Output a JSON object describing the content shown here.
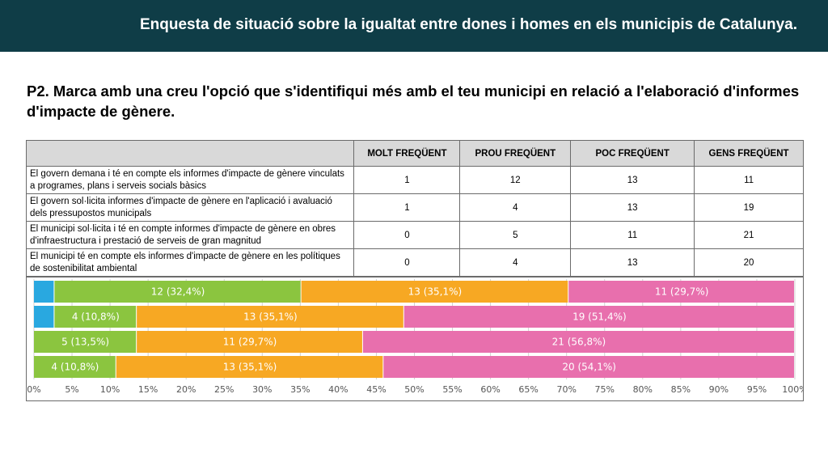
{
  "header": {
    "title": "Enquesta de situació sobre la  igualtat entre dones i homes en els municipis de Catalunya."
  },
  "question": "P2. Marca amb una creu l'opció que s'identifiqui més amb el teu municipi en relació a l'elaboració d'informes d'impacte de gènere.",
  "table": {
    "columns": [
      "MOLT FREQÜENT",
      "PROU FREQÜENT",
      "POC FREQÜENT",
      "GENS FREQÜENT"
    ],
    "rows": [
      {
        "label": "El govern demana i té en compte els informes d'impacte de gènere vinculats a programes, plans i serveis socials bàsics",
        "values": [
          "1",
          "12",
          "13",
          "11"
        ]
      },
      {
        "label": "El govern sol·licita informes d'impacte de gènere en l'aplicació i avaluació dels pressupostos municipals",
        "values": [
          "1",
          "4",
          "13",
          "19"
        ]
      },
      {
        "label": "El municipi sol·licita i té en compte informes d'impacte de gènere en obres d'infraestructura i prestació de serveis de gran magnitud",
        "values": [
          "0",
          "5",
          "11",
          "21"
        ]
      },
      {
        "label": "El municipi té en compte els informes d'impacte de gènere en les polítiques de sostenibilitat ambiental",
        "values": [
          "0",
          "4",
          "13",
          "20"
        ]
      }
    ]
  },
  "chart_data": {
    "type": "bar",
    "orientation": "horizontal",
    "stacked": true,
    "normalized": true,
    "colors": [
      "#29a8e0",
      "#8bc53f",
      "#f7a823",
      "#e86fad"
    ],
    "categories": [
      "Row 1",
      "Row 2",
      "Row 3",
      "Row 4"
    ],
    "series": [
      {
        "values": [
          1,
          1,
          0,
          0
        ],
        "labels": [
          "",
          "",
          "",
          ""
        ]
      },
      {
        "values": [
          12,
          4,
          5,
          4
        ],
        "labels": [
          "12 (32,4%)",
          "4 (10,8%)",
          "5 (13,5%)",
          "4 (10,8%)"
        ]
      },
      {
        "values": [
          13,
          13,
          11,
          13
        ],
        "labels": [
          "13 (35,1%)",
          "13 (35,1%)",
          "11 (29,7%)",
          "13 (35,1%)"
        ]
      },
      {
        "values": [
          11,
          19,
          21,
          20
        ],
        "labels": [
          "11 (29,7%)",
          "19 (51,4%)",
          "21 (56,8%)",
          "20 (54,1%)"
        ]
      }
    ],
    "xlim": [
      0,
      100
    ],
    "xticks": [
      "0%",
      "5%",
      "10%",
      "15%",
      "20%",
      "25%",
      "30%",
      "35%",
      "40%",
      "45%",
      "50%",
      "55%",
      "60%",
      "65%",
      "70%",
      "75%",
      "80%",
      "85%",
      "90%",
      "95%",
      "100%"
    ],
    "grid": true,
    "legend": "none"
  }
}
